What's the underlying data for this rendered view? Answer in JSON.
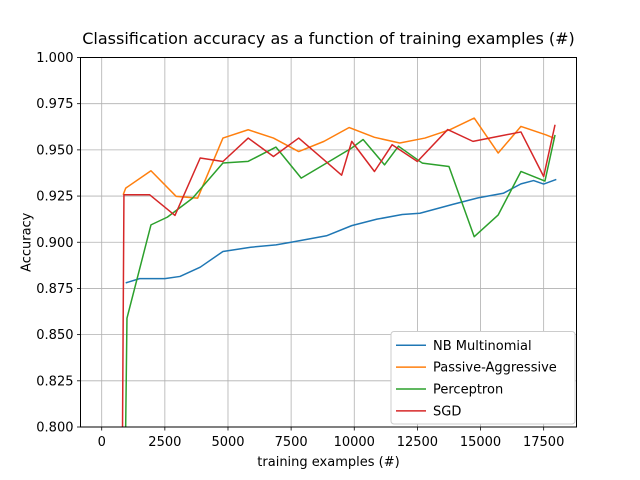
{
  "chart_data": {
    "type": "line",
    "title": "Classification accuracy as a function of training examples (#)",
    "xlabel": "training examples (#)",
    "ylabel": "Accuracy",
    "xlim": [
      -840,
      18800
    ],
    "ylim": [
      0.8,
      1.0
    ],
    "xticks": [
      0,
      2500,
      5000,
      7500,
      10000,
      12500,
      15000,
      17500
    ],
    "xtick_labels": [
      "0",
      "2500",
      "5000",
      "7500",
      "10000",
      "12500",
      "15000",
      "17500"
    ],
    "yticks": [
      0.8,
      0.825,
      0.85,
      0.875,
      0.9,
      0.925,
      0.95,
      0.975,
      1.0
    ],
    "ytick_labels": [
      "0.800",
      "0.825",
      "0.850",
      "0.875",
      "0.900",
      "0.925",
      "0.950",
      "0.975",
      "1.000"
    ],
    "grid": true,
    "legend": {
      "position": "lower right"
    },
    "colors": {
      "grid": "#b0b0b0",
      "spine": "#000000",
      "legend_border": "#cccccc",
      "text": "#000000",
      "background": "#ffffff"
    },
    "series": [
      {
        "name": "NB Multinomial",
        "color": "#1f77b4",
        "x": [
          950,
          1500,
          2500,
          3100,
          3900,
          4800,
          5900,
          6900,
          7500,
          8900,
          9900,
          10900,
          11900,
          12600,
          13900,
          14900,
          15900,
          16600,
          17100,
          17500,
          18000
        ],
        "y": [
          0.878,
          0.8803,
          0.8803,
          0.8815,
          0.8865,
          0.895,
          0.8973,
          0.8986,
          0.9,
          0.9035,
          0.909,
          0.9125,
          0.915,
          0.9157,
          0.9205,
          0.924,
          0.9265,
          0.9316,
          0.9334,
          0.9315,
          0.934
        ]
      },
      {
        "name": "Passive-Aggressive",
        "color": "#ff7f0e",
        "x": [
          850,
          950,
          1950,
          2950,
          3800,
          4800,
          5800,
          6800,
          7800,
          8800,
          9800,
          10800,
          11800,
          12800,
          13800,
          14750,
          15700,
          16600,
          17600,
          17900
        ],
        "y": [
          0.9257,
          0.9293,
          0.9387,
          0.9248,
          0.9239,
          0.9564,
          0.9609,
          0.9564,
          0.9491,
          0.9546,
          0.9621,
          0.9568,
          0.9537,
          0.9564,
          0.961,
          0.9672,
          0.9483,
          0.9627,
          0.9581,
          0.9564
        ]
      },
      {
        "name": "Perceptron",
        "color": "#2ca02c",
        "x": [
          940,
          1000,
          1950,
          2600,
          3600,
          4800,
          5800,
          6900,
          7900,
          8800,
          9900,
          10350,
          11200,
          11750,
          12700,
          13750,
          14750,
          15700,
          16600,
          17550,
          17950
        ],
        "y": [
          0.79,
          0.8589,
          0.9094,
          0.9136,
          0.9239,
          0.9429,
          0.9438,
          0.9515,
          0.9347,
          0.942,
          0.951,
          0.9556,
          0.9419,
          0.952,
          0.9428,
          0.941,
          0.903,
          0.9148,
          0.9383,
          0.9331,
          0.9581
        ]
      },
      {
        "name": "SGD",
        "color": "#d62728",
        "x": [
          820,
          880,
          1900,
          2900,
          3900,
          4800,
          5800,
          6800,
          7800,
          8800,
          9500,
          9900,
          10800,
          11500,
          12500,
          13700,
          14700,
          15700,
          16600,
          17500,
          17950
        ],
        "y": [
          0.79,
          0.9257,
          0.9257,
          0.9145,
          0.9456,
          0.9437,
          0.9564,
          0.9464,
          0.9564,
          0.9446,
          0.9363,
          0.9546,
          0.9383,
          0.9528,
          0.9437,
          0.961,
          0.9546,
          0.9573,
          0.9597,
          0.9356,
          0.9636
        ]
      }
    ]
  }
}
